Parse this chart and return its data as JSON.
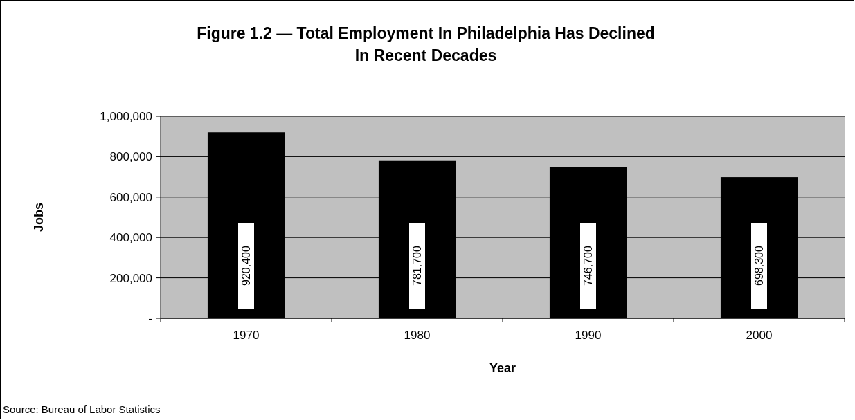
{
  "chart_data": {
    "type": "bar",
    "title": "Figure 1.2 — Total Employment In Philadelphia Has Declined\nIn Recent Decades",
    "xlabel": "Year",
    "ylabel": "Jobs",
    "categories": [
      "1970",
      "1980",
      "1990",
      "2000"
    ],
    "values": [
      920400,
      781700,
      746700,
      698300
    ],
    "value_labels": [
      "920,400",
      "781,700",
      "746,700",
      "698,300"
    ],
    "color": "#000000",
    "ylim": [
      0,
      1000000
    ],
    "yticks": [
      {
        "value": 0,
        "label": "-"
      },
      {
        "value": 200000,
        "label": "200,000"
      },
      {
        "value": 400000,
        "label": "400,000"
      },
      {
        "value": 600000,
        "label": "600,000"
      },
      {
        "value": 800000,
        "label": "800,000"
      },
      {
        "value": 1000000,
        "label": "1,000,000"
      }
    ],
    "grid": "y",
    "annotations": [
      "Source:  Bureau of Labor Statistics"
    ]
  }
}
